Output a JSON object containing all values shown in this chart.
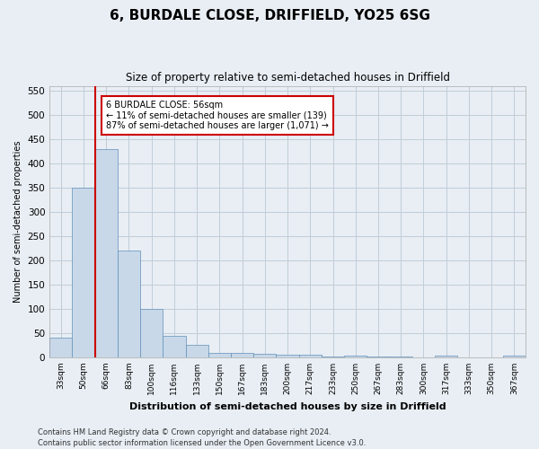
{
  "title": "6, BURDALE CLOSE, DRIFFIELD, YO25 6SG",
  "subtitle": "Size of property relative to semi-detached houses in Driffield",
  "xlabel": "Distribution of semi-detached houses by size in Driffield",
  "ylabel": "Number of semi-detached properties",
  "footer1": "Contains HM Land Registry data © Crown copyright and database right 2024.",
  "footer2": "Contains public sector information licensed under the Open Government Licence v3.0.",
  "annotation_title": "6 BURDALE CLOSE: 56sqm",
  "annotation_line1": "← 11% of semi-detached houses are smaller (139)",
  "annotation_line2": "87% of semi-detached houses are larger (1,071) →",
  "bar_color": "#c8d8e8",
  "bar_edge_color": "#6090b8",
  "grid_color": "#c0ccd8",
  "red_line_color": "#cc0000",
  "categories": [
    "33sqm",
    "50sqm",
    "66sqm",
    "83sqm",
    "100sqm",
    "116sqm",
    "133sqm",
    "150sqm",
    "167sqm",
    "183sqm",
    "200sqm",
    "217sqm",
    "233sqm",
    "250sqm",
    "267sqm",
    "283sqm",
    "300sqm",
    "317sqm",
    "333sqm",
    "350sqm",
    "367sqm"
  ],
  "values": [
    40,
    350,
    430,
    220,
    100,
    45,
    25,
    10,
    10,
    7,
    5,
    5,
    2,
    4,
    1,
    2,
    0,
    3,
    0,
    0,
    4
  ],
  "red_line_x": 1.5,
  "ylim": [
    0,
    560
  ],
  "yticks": [
    0,
    50,
    100,
    150,
    200,
    250,
    300,
    350,
    400,
    450,
    500,
    550
  ],
  "background_color": "#e8eef4",
  "plot_background": "#e8eef4",
  "title_fontsize": 11,
  "subtitle_fontsize": 8.5
}
